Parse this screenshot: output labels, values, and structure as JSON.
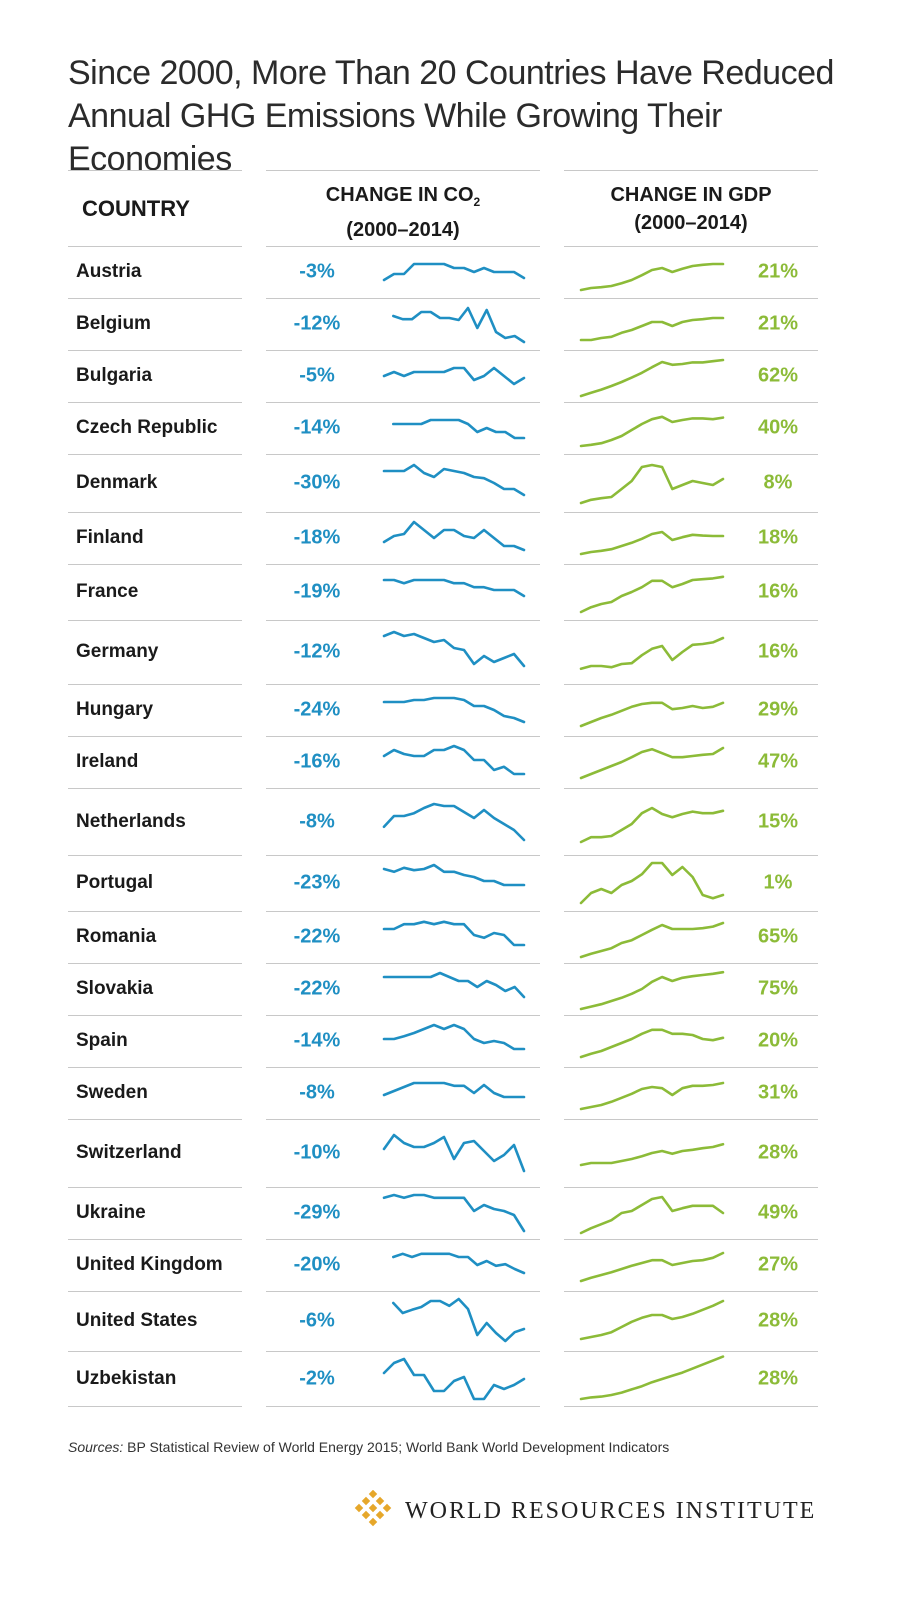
{
  "title_line1": "Since 2000, More Than 20 Countries Have Reduced",
  "title_line2": "Annual GHG Emissions While Growing Their Economies",
  "headers": {
    "country": "COUNTRY",
    "co2_line1": "CHANGE IN CO",
    "co2_sub": "2",
    "co2_line2": "(2000–2014)",
    "gdp_line1": "CHANGE IN GDP",
    "gdp_line2": "(2000–2014)"
  },
  "sources_label": "Sources:",
  "sources_text": " BP Statistical Review of World Energy 2015; World Bank World Development Indicators",
  "logo_text": "WORLD RESOURCES INSTITUTE",
  "colors": {
    "co2": "#1f8fc3",
    "gdp": "#8cbb38",
    "rule": "#c8c8c8",
    "logo": "#e6a72a"
  },
  "chart_data": {
    "type": "table",
    "years": [
      2000,
      2014
    ],
    "columns": [
      "COUNTRY",
      "CHANGE IN CO2 (2000–2014)",
      "CHANGE IN GDP (2000–2014)"
    ],
    "rows": [
      {
        "country": "Austria",
        "co2": "-3%",
        "gdp": "21%",
        "co2_series": [
          0.3,
          0.45,
          0.45,
          0.7,
          0.7,
          0.7,
          0.7,
          0.6,
          0.6,
          0.5,
          0.6,
          0.5,
          0.5,
          0.5,
          0.35
        ],
        "gdp_series": [
          0.05,
          0.1,
          0.12,
          0.15,
          0.22,
          0.3,
          0.42,
          0.55,
          0.6,
          0.5,
          0.58,
          0.65,
          0.68,
          0.7,
          0.7
        ]
      },
      {
        "country": "Belgium",
        "co2": "-12%",
        "gdp": "21%",
        "co2_series": [
          null,
          0.7,
          0.62,
          0.62,
          0.8,
          0.8,
          0.65,
          0.65,
          0.6,
          0.9,
          0.4,
          0.85,
          0.3,
          0.15,
          0.2,
          0.05
        ],
        "gdp_series": [
          0.1,
          0.1,
          0.15,
          0.18,
          0.28,
          0.35,
          0.45,
          0.55,
          0.55,
          0.45,
          0.55,
          0.6,
          0.62,
          0.65,
          0.65
        ]
      },
      {
        "country": "Bulgaria",
        "co2": "-5%",
        "gdp": "62%",
        "co2_series": [
          0.5,
          0.6,
          0.5,
          0.6,
          0.6,
          0.6,
          0.6,
          0.7,
          0.7,
          0.4,
          0.5,
          0.7,
          0.5,
          0.3,
          0.45
        ],
        "gdp_series": [
          0.0,
          0.08,
          0.16,
          0.25,
          0.35,
          0.46,
          0.58,
          0.72,
          0.85,
          0.78,
          0.8,
          0.84,
          0.84,
          0.87,
          0.9
        ]
      },
      {
        "country": "Czech Republic",
        "co2": "-14%",
        "gdp": "40%",
        "co2_series": [
          null,
          0.6,
          0.6,
          0.6,
          0.6,
          0.7,
          0.7,
          0.7,
          0.7,
          0.6,
          0.4,
          0.5,
          0.4,
          0.4,
          0.25,
          0.25
        ],
        "gdp_series": [
          0.05,
          0.08,
          0.12,
          0.2,
          0.3,
          0.45,
          0.6,
          0.72,
          0.78,
          0.65,
          0.7,
          0.74,
          0.74,
          0.72,
          0.76
        ]
      },
      {
        "country": "Denmark",
        "co2": "-30%",
        "gdp": "8%",
        "co2_series": [
          0.8,
          0.8,
          0.8,
          0.95,
          0.75,
          0.65,
          0.85,
          0.8,
          0.75,
          0.65,
          0.62,
          0.5,
          0.35,
          0.35,
          0.2
        ],
        "gdp_series": [
          0.0,
          0.08,
          0.12,
          0.15,
          0.35,
          0.55,
          0.9,
          0.95,
          0.9,
          0.35,
          0.45,
          0.55,
          0.5,
          0.45,
          0.6
        ]
      },
      {
        "country": "Finland",
        "co2": "-18%",
        "gdp": "18%",
        "co2_series": [
          0.4,
          0.55,
          0.6,
          0.9,
          0.7,
          0.5,
          0.7,
          0.7,
          0.55,
          0.5,
          0.7,
          0.5,
          0.3,
          0.3,
          0.2
        ],
        "gdp_series": [
          0.1,
          0.15,
          0.18,
          0.22,
          0.3,
          0.38,
          0.48,
          0.6,
          0.65,
          0.45,
          0.52,
          0.58,
          0.56,
          0.55,
          0.55
        ]
      },
      {
        "country": "France",
        "co2": "-19%",
        "gdp": "16%",
        "co2_series": [
          0.8,
          0.8,
          0.72,
          0.8,
          0.8,
          0.8,
          0.8,
          0.72,
          0.72,
          0.62,
          0.62,
          0.55,
          0.55,
          0.55,
          0.4
        ],
        "gdp_series": [
          0.0,
          0.12,
          0.2,
          0.25,
          0.4,
          0.5,
          0.62,
          0.78,
          0.78,
          0.62,
          0.7,
          0.8,
          0.82,
          0.84,
          0.88
        ]
      },
      {
        "country": "Germany",
        "co2": "-12%",
        "gdp": "16%",
        "co2_series": [
          0.9,
          1.0,
          0.9,
          0.95,
          0.85,
          0.75,
          0.8,
          0.6,
          0.55,
          0.2,
          0.4,
          0.25,
          0.35,
          0.45,
          0.15
        ],
        "gdp_series": [
          0.08,
          0.15,
          0.15,
          0.12,
          0.2,
          0.22,
          0.42,
          0.58,
          0.65,
          0.3,
          0.5,
          0.68,
          0.7,
          0.74,
          0.85
        ]
      },
      {
        "country": "Hungary",
        "co2": "-24%",
        "gdp": "29%",
        "co2_series": [
          0.7,
          0.7,
          0.7,
          0.75,
          0.75,
          0.8,
          0.8,
          0.8,
          0.75,
          0.6,
          0.6,
          0.5,
          0.35,
          0.3,
          0.2
        ],
        "gdp_series": [
          0.1,
          0.2,
          0.3,
          0.38,
          0.48,
          0.58,
          0.65,
          0.68,
          0.68,
          0.52,
          0.55,
          0.6,
          0.55,
          0.58,
          0.68
        ]
      },
      {
        "country": "Ireland",
        "co2": "-16%",
        "gdp": "47%",
        "co2_series": [
          0.65,
          0.8,
          0.7,
          0.65,
          0.65,
          0.8,
          0.8,
          0.9,
          0.8,
          0.55,
          0.55,
          0.3,
          0.38,
          0.2,
          0.2
        ],
        "gdp_series": [
          0.1,
          0.2,
          0.3,
          0.4,
          0.5,
          0.62,
          0.75,
          0.82,
          0.72,
          0.62,
          0.62,
          0.65,
          0.68,
          0.7,
          0.85
        ]
      },
      {
        "country": "Netherlands",
        "co2": "-8%",
        "gdp": "15%",
        "co2_series": [
          0.38,
          0.65,
          0.65,
          0.72,
          0.85,
          0.95,
          0.9,
          0.9,
          0.75,
          0.6,
          0.8,
          0.6,
          0.45,
          0.3,
          0.05
        ],
        "gdp_series": [
          0.0,
          0.12,
          0.12,
          0.15,
          0.3,
          0.45,
          0.72,
          0.85,
          0.7,
          0.62,
          0.7,
          0.76,
          0.72,
          0.72,
          0.78
        ]
      },
      {
        "country": "Portugal",
        "co2": "-23%",
        "gdp": "1%",
        "co2_series": [
          0.85,
          0.78,
          0.88,
          0.82,
          0.85,
          0.95,
          0.78,
          0.78,
          0.7,
          0.65,
          0.55,
          0.55,
          0.45,
          0.45,
          0.45
        ],
        "gdp_series": [
          0.0,
          0.25,
          0.35,
          0.25,
          0.45,
          0.55,
          0.72,
          1.0,
          1.0,
          0.7,
          0.9,
          0.65,
          0.2,
          0.12,
          0.2
        ]
      },
      {
        "country": "Romania",
        "co2": "-22%",
        "gdp": "65%",
        "co2_series": [
          0.7,
          0.7,
          0.82,
          0.82,
          0.88,
          0.82,
          0.88,
          0.82,
          0.82,
          0.55,
          0.48,
          0.6,
          0.55,
          0.3,
          0.3
        ],
        "gdp_series": [
          0.0,
          0.08,
          0.15,
          0.22,
          0.35,
          0.42,
          0.55,
          0.68,
          0.8,
          0.7,
          0.7,
          0.7,
          0.72,
          0.76,
          0.85
        ]
      },
      {
        "country": "Slovakia",
        "co2": "-22%",
        "gdp": "75%",
        "co2_series": [
          0.8,
          0.8,
          0.8,
          0.8,
          0.8,
          0.8,
          0.9,
          0.8,
          0.7,
          0.7,
          0.55,
          0.7,
          0.6,
          0.45,
          0.55,
          0.3
        ],
        "gdp_series": [
          0.0,
          0.06,
          0.12,
          0.2,
          0.28,
          0.38,
          0.5,
          0.68,
          0.8,
          0.7,
          0.78,
          0.82,
          0.85,
          0.88,
          0.92
        ]
      },
      {
        "country": "Spain",
        "co2": "-14%",
        "gdp": "20%",
        "co2_series": [
          0.55,
          0.55,
          0.62,
          0.7,
          0.8,
          0.9,
          0.8,
          0.9,
          0.8,
          0.55,
          0.45,
          0.5,
          0.45,
          0.3,
          0.3
        ],
        "gdp_series": [
          0.1,
          0.18,
          0.25,
          0.35,
          0.45,
          0.55,
          0.68,
          0.78,
          0.78,
          0.68,
          0.68,
          0.65,
          0.55,
          0.52,
          0.58
        ]
      },
      {
        "country": "Sweden",
        "co2": "-8%",
        "gdp": "31%",
        "co2_series": [
          0.45,
          0.55,
          0.65,
          0.75,
          0.75,
          0.75,
          0.75,
          0.68,
          0.68,
          0.5,
          0.7,
          0.5,
          0.4,
          0.4,
          0.4
        ],
        "gdp_series": [
          0.1,
          0.15,
          0.2,
          0.28,
          0.38,
          0.48,
          0.6,
          0.65,
          0.62,
          0.45,
          0.62,
          0.68,
          0.68,
          0.7,
          0.75
        ]
      },
      {
        "country": "Switzerland",
        "co2": "-10%",
        "gdp": "28%",
        "co2_series": [
          0.6,
          0.95,
          0.75,
          0.65,
          0.65,
          0.75,
          0.9,
          0.35,
          0.75,
          0.8,
          0.55,
          0.3,
          0.45,
          0.7,
          0.05
        ],
        "gdp_series": [
          0.2,
          0.25,
          0.25,
          0.25,
          0.3,
          0.35,
          0.42,
          0.5,
          0.55,
          0.48,
          0.55,
          0.58,
          0.62,
          0.65,
          0.72
        ]
      },
      {
        "country": "Ukraine",
        "co2": "-29%",
        "gdp": "49%",
        "co2_series": [
          0.88,
          0.95,
          0.88,
          0.95,
          0.95,
          0.88,
          0.88,
          0.88,
          0.88,
          0.55,
          0.7,
          0.6,
          0.55,
          0.45,
          0.05
        ],
        "gdp_series": [
          0.0,
          0.12,
          0.22,
          0.32,
          0.5,
          0.55,
          0.7,
          0.85,
          0.9,
          0.55,
          0.62,
          0.68,
          0.68,
          0.68,
          0.5
        ]
      },
      {
        "country": "United Kingdom",
        "co2": "-20%",
        "gdp": "27%",
        "co2_series": [
          null,
          0.7,
          0.78,
          0.7,
          0.78,
          0.78,
          0.78,
          0.78,
          0.7,
          0.7,
          0.5,
          0.6,
          0.48,
          0.52,
          0.4,
          0.3
        ],
        "gdp_series": [
          0.1,
          0.18,
          0.25,
          0.32,
          0.4,
          0.48,
          0.55,
          0.62,
          0.62,
          0.5,
          0.55,
          0.6,
          0.62,
          0.68,
          0.8
        ]
      },
      {
        "country": "United States",
        "co2": "-6%",
        "gdp": "28%",
        "co2_series": [
          null,
          0.95,
          0.7,
          0.78,
          0.85,
          1.0,
          1.0,
          0.88,
          1.05,
          0.8,
          0.15,
          0.45,
          0.2,
          0.0,
          0.22,
          0.3
        ],
        "gdp_series": [
          0.05,
          0.1,
          0.15,
          0.22,
          0.35,
          0.48,
          0.58,
          0.65,
          0.65,
          0.55,
          0.6,
          0.68,
          0.78,
          0.88,
          1.0
        ]
      },
      {
        "country": "Uzbekistan",
        "co2": "-2%",
        "gdp": "28%",
        "co2_series": [
          0.65,
          0.9,
          1.0,
          0.6,
          0.6,
          0.2,
          0.2,
          0.45,
          0.55,
          0.0,
          0.0,
          0.35,
          0.25,
          0.35,
          0.5
        ],
        "gdp_series": [
          0.0,
          0.04,
          0.06,
          0.1,
          0.16,
          0.24,
          0.32,
          0.42,
          0.5,
          0.58,
          0.66,
          0.76,
          0.86,
          0.96,
          1.06
        ]
      }
    ]
  }
}
